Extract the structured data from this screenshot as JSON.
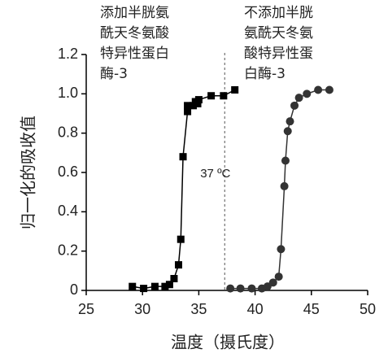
{
  "chart_data": {
    "type": "scatter",
    "x_label": "温度（摄氏度）",
    "y_label": "归一化的吸收值",
    "xlim": [
      25,
      50
    ],
    "xticks": [
      25,
      30,
      35,
      40,
      45,
      50
    ],
    "ylim": [
      0,
      1.2
    ],
    "yticks": [
      0,
      0.2,
      0.4,
      0.6,
      0.8,
      {
        "value": 1,
        "label": "1.0"
      },
      1.2
    ],
    "reference_x": 37.3,
    "reference_label": "37 ºC",
    "annotations": [
      [
        "添加半胱氨",
        "酰天冬氨酸",
        "特异性蛋白",
        "酶-3"
      ],
      [
        "不添加半胱",
        "氨酰天冬氨",
        "酸特异性蛋",
        "白酶-3"
      ]
    ],
    "series": [
      {
        "color": "#000000",
        "marker": "square",
        "x": [
          29.1,
          30.1,
          31.1,
          32.0,
          32.4,
          32.8,
          33.2,
          33.4,
          33.6,
          34.0,
          34.0,
          34.5,
          34.7,
          34.9,
          35.0,
          36.1,
          37.2,
          38.2
        ],
        "values": [
          0.02,
          0.01,
          0.02,
          0.02,
          0.03,
          0.06,
          0.13,
          0.26,
          0.68,
          0.91,
          0.94,
          0.94,
          0.96,
          0.95,
          0.97,
          0.99,
          0.99,
          1.02
        ]
      },
      {
        "color": "#333333",
        "marker": "circle",
        "x": [
          37.8,
          38.7,
          39.7,
          40.6,
          41.1,
          41.6,
          42.1,
          42.3,
          42.6,
          42.7,
          42.9,
          43.1,
          43.5,
          43.9,
          44.6,
          45.6,
          46.6
        ],
        "values": [
          0.01,
          0.01,
          0.01,
          0.01,
          0.02,
          0.04,
          0.07,
          0.21,
          0.53,
          0.66,
          0.81,
          0.86,
          0.94,
          0.98,
          1.0,
          1.02,
          1.02
        ]
      }
    ]
  }
}
